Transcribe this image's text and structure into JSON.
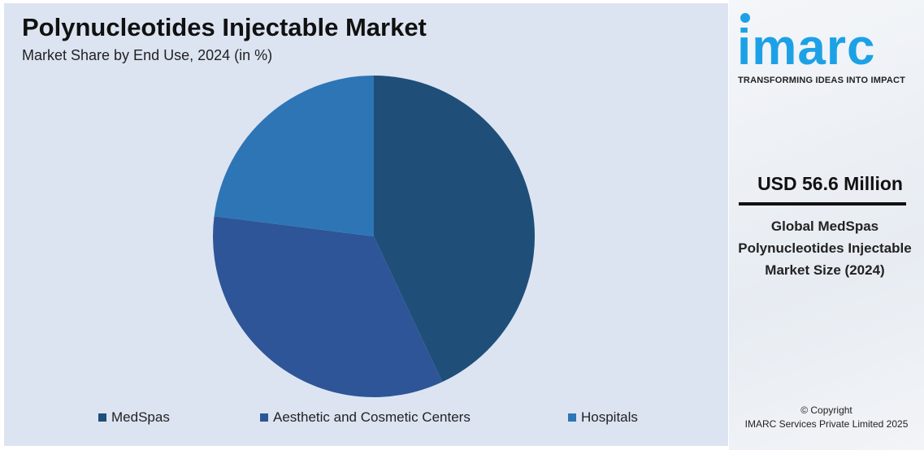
{
  "chart_data": {
    "type": "pie",
    "title": "Polynucleotides Injectable Market",
    "subtitle": "Market Share by End Use, 2024 (in %)",
    "categories": [
      "MedSpas",
      "Aesthetic and Cosmetic Centers",
      "Hospitals"
    ],
    "values": [
      43,
      34,
      23
    ],
    "colors": [
      "#1f4e79",
      "#2e5597",
      "#2e75b6"
    ],
    "start_angle_deg": 0,
    "direction": "clockwise",
    "legend": "bottom"
  },
  "sidebar": {
    "logo": "imarc",
    "tagline": "TRANSFORMING IDEAS INTO IMPACT",
    "value": "USD 56.6 Million",
    "description": "Global MedSpas Polynucleotides Injectable Market Size (2024)",
    "copyright": "© Copyright",
    "company": "IMARC Services Private Limited 2025"
  }
}
